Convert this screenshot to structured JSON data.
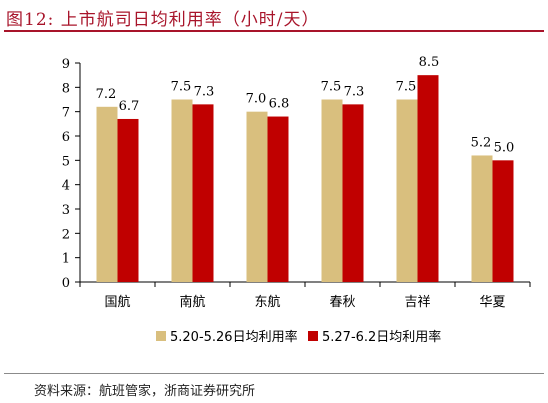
{
  "figure": {
    "title": "图12:  上市航司日均利用率（小时/天）",
    "source": "资料来源：航班管家，浙商证券研究所"
  },
  "colors": {
    "series_1": "#d9bf7e",
    "series_2": "#c00000",
    "title": "#a8142a"
  },
  "chart_data": {
    "type": "bar",
    "categories": [
      "国航",
      "南航",
      "东航",
      "春秋",
      "吉祥",
      "华夏"
    ],
    "series": [
      {
        "name": "5.20-5.26日均利用率",
        "values": [
          7.2,
          7.5,
          7.0,
          7.5,
          7.5,
          5.2
        ]
      },
      {
        "name": "5.27-6.2日均利用率",
        "values": [
          6.7,
          7.3,
          6.8,
          7.3,
          8.5,
          5.0
        ]
      }
    ],
    "ylim": [
      0,
      9
    ],
    "yticks": [
      "0",
      "1",
      "2",
      "3",
      "4",
      "5",
      "6",
      "7",
      "8",
      "9"
    ],
    "data_labels": [
      [
        "7.2",
        "7.5",
        "7.0",
        "7.5",
        "7.5",
        "5.2"
      ],
      [
        "6.7",
        "7.3",
        "6.8",
        "7.3",
        "8.5",
        "5.0"
      ]
    ],
    "legend_position": "bottom",
    "grid": false
  }
}
